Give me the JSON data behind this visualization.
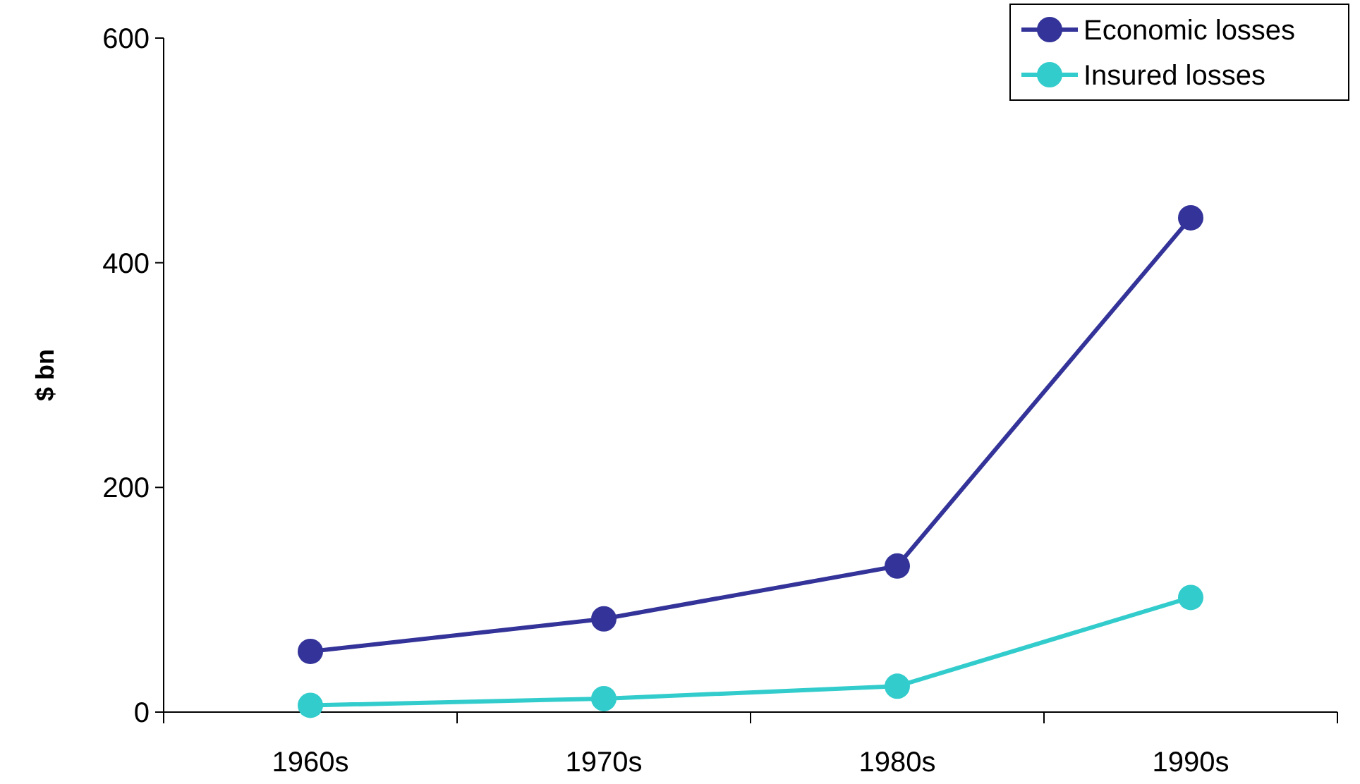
{
  "chart_data": {
    "type": "line",
    "ylabel": "$ bn",
    "categories": [
      "1960s",
      "1970s",
      "1980s",
      "1990s"
    ],
    "ylim": [
      0,
      600
    ],
    "yticks": [
      0,
      200,
      400,
      600
    ],
    "grid": false,
    "legend": "top right",
    "marker": "circle",
    "line_style": "solid",
    "series": [
      {
        "name": "Economic losses",
        "color": "#333399",
        "values": [
          54,
          83,
          130,
          440
        ]
      },
      {
        "name": "Insured losses",
        "color": "#33cccc",
        "values": [
          6,
          12,
          23,
          102
        ]
      }
    ]
  }
}
